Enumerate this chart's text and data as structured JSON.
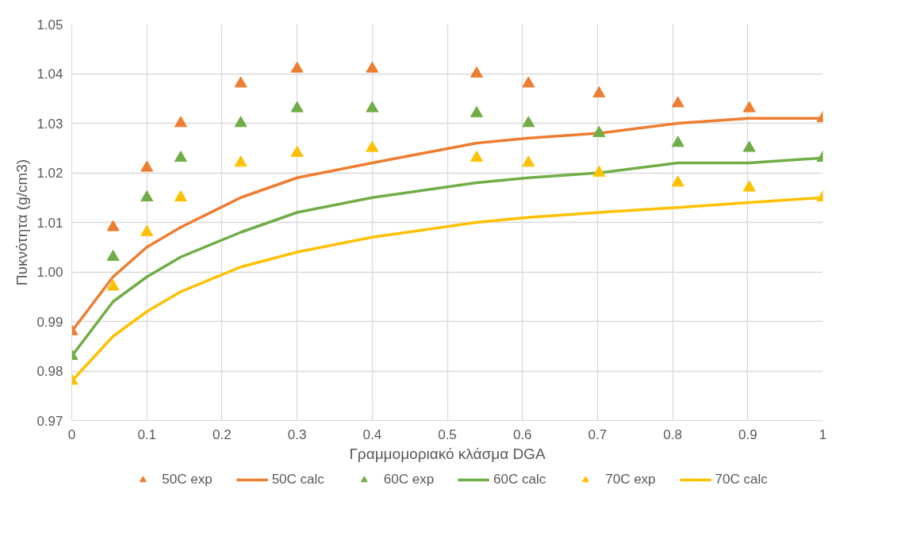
{
  "chart_data": {
    "type": "scatter",
    "xlabel": "Γραμμομοριακό κλάσμα DGA",
    "ylabel": "Πυκνότητα (g/cm3)",
    "xlim": [
      0,
      1
    ],
    "xticks": [
      0,
      0.1,
      0.2,
      0.3,
      0.4,
      0.5,
      0.6,
      0.7,
      0.8,
      0.9,
      1
    ],
    "ylim": [
      0.97,
      1.05
    ],
    "yticks": [
      {
        "value": 0.97,
        "label": "0.97"
      },
      {
        "value": 0.98,
        "label": "0.98"
      },
      {
        "value": 0.99,
        "label": "0.99"
      },
      {
        "value": 1.0,
        "label": "1.00"
      },
      {
        "value": 1.01,
        "label": "1.01"
      },
      {
        "value": 1.02,
        "label": "1.02"
      },
      {
        "value": 1.03,
        "label": "1.03"
      },
      {
        "value": 1.04,
        "label": "1.04"
      },
      {
        "value": 1.05,
        "label": "1.05"
      }
    ],
    "grid": true,
    "legend": "bottom",
    "x": [
      0,
      0.055,
      0.1,
      0.145,
      0.225,
      0.3,
      0.4,
      0.539,
      0.608,
      0.702,
      0.807,
      0.902,
      1.0
    ],
    "series": [
      {
        "name": "50C exp",
        "marker": "triangle",
        "color": "#ed7d31",
        "values": [
          0.988,
          1.009,
          1.021,
          1.03,
          1.038,
          1.041,
          1.041,
          1.04,
          1.038,
          1.036,
          1.034,
          1.033,
          1.031
        ]
      },
      {
        "name": "50C calc",
        "type": "line",
        "marker": "none",
        "line_style": "solid",
        "color": "#ed7d31",
        "values": [
          0.988,
          0.999,
          1.005,
          1.009,
          1.015,
          1.019,
          1.022,
          1.026,
          1.027,
          1.028,
          1.03,
          1.031,
          1.031
        ]
      },
      {
        "name": "60C exp",
        "marker": "triangle",
        "color": "#70ad47",
        "values": [
          0.983,
          1.003,
          1.015,
          1.023,
          1.03,
          1.033,
          1.033,
          1.032,
          1.03,
          1.028,
          1.026,
          1.025,
          1.023
        ]
      },
      {
        "name": "60C calc",
        "type": "line",
        "marker": "none",
        "line_style": "solid",
        "color": "#70ad47",
        "values": [
          0.983,
          0.994,
          0.999,
          1.003,
          1.008,
          1.012,
          1.015,
          1.018,
          1.019,
          1.02,
          1.022,
          1.022,
          1.023
        ]
      },
      {
        "name": "70C exp",
        "marker": "triangle",
        "color": "#ffc000",
        "values": [
          0.978,
          0.997,
          1.008,
          1.015,
          1.022,
          1.024,
          1.025,
          1.023,
          1.022,
          1.02,
          1.018,
          1.017,
          1.015
        ]
      },
      {
        "name": "70C calc",
        "type": "line",
        "marker": "none",
        "line_style": "solid",
        "color": "#ffc000",
        "values": [
          0.978,
          0.987,
          0.992,
          0.996,
          1.001,
          1.004,
          1.007,
          1.01,
          1.011,
          1.012,
          1.013,
          1.014,
          1.015
        ]
      }
    ]
  }
}
